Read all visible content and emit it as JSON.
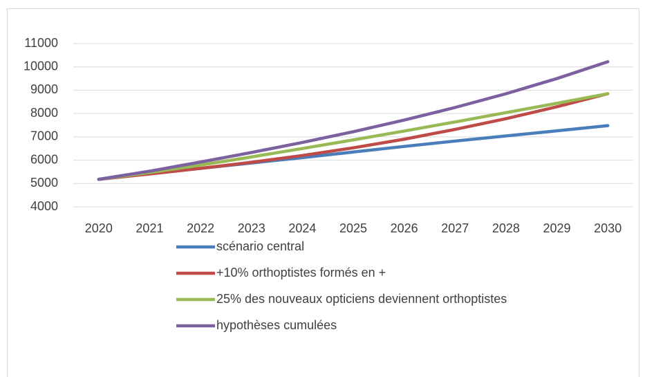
{
  "chart_data": {
    "type": "line",
    "categories": [
      "2020",
      "2021",
      "2022",
      "2023",
      "2024",
      "2025",
      "2026",
      "2027",
      "2028",
      "2029",
      "2030"
    ],
    "series": [
      {
        "name": "scénario central",
        "color": "#4a7ebb",
        "values": [
          5180,
          5420,
          5650,
          5880,
          6110,
          6350,
          6590,
          6820,
          7040,
          7260,
          7480
        ]
      },
      {
        "name": "+10% orthoptistes formés en +",
        "color": "#be4b48",
        "values": [
          5180,
          5410,
          5650,
          5910,
          6200,
          6530,
          6900,
          7320,
          7780,
          8290,
          8850
        ]
      },
      {
        "name": "25% des nouveaux opticiens deviennent orthoptistes",
        "color": "#98b954",
        "values": [
          5180,
          5470,
          5790,
          6140,
          6500,
          6870,
          7250,
          7640,
          8040,
          8440,
          8850
        ]
      },
      {
        "name": "hypothèses cumulées",
        "color": "#7d60a0",
        "values": [
          5180,
          5530,
          5920,
          6330,
          6760,
          7220,
          7720,
          8260,
          8850,
          9500,
          10220
        ]
      }
    ],
    "ylim": [
      4000,
      11000
    ],
    "yticks": [
      4000,
      5000,
      6000,
      7000,
      8000,
      9000,
      10000,
      11000
    ],
    "grid": true,
    "legend": "bottom"
  }
}
